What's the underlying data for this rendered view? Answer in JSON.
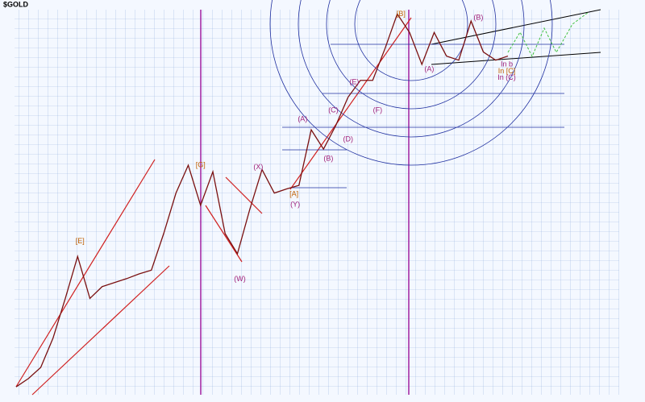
{
  "chart_data": {
    "type": "line",
    "title": "$GOLD",
    "values": [
      261,
      273,
      290,
      340,
      422,
      530,
      422,
      450,
      460,
      470,
      482,
      492,
      600,
      748,
      870,
      700,
      840,
      600,
      538,
      684,
      850,
      748,
      765,
      780,
      1055,
      950,
      1080,
      1260,
      1380,
      1380,
      1640,
      1980,
      1790,
      1505,
      1790,
      1575,
      1540,
      1905,
      1610,
      1540,
      1575
    ],
    "color": "#7a1010",
    "log_scale": true,
    "ylim": [
      250,
      2000
    ],
    "grid": true,
    "annotations": [
      {
        "text": "[E]",
        "x": 5.2,
        "y": 575,
        "color": "#c06000"
      },
      {
        "text": "[G]",
        "x": 15,
        "y": 870,
        "color": "#c06000"
      },
      {
        "text": "[B]",
        "x": 31.3,
        "y": 1975,
        "color": "#c06000"
      },
      {
        "text": "(A)",
        "x": 23.3,
        "y": 1117,
        "color": "#a0207a"
      },
      {
        "text": "(C)",
        "x": 25.8,
        "y": 1172,
        "color": "#a0207a"
      },
      {
        "text": "(E)",
        "x": 27.5,
        "y": 1367,
        "color": "#a0207a"
      },
      {
        "text": "(D)",
        "x": 27,
        "y": 1002,
        "color": "#a0207a"
      },
      {
        "text": "(F)",
        "x": 29.4,
        "y": 1172,
        "color": "#a0207a"
      },
      {
        "text": "(B)",
        "x": 25.4,
        "y": 902,
        "color": "#a0207a"
      },
      {
        "text": "[A]",
        "x": 22.6,
        "y": 743,
        "color": "#c06000"
      },
      {
        "text": "(Y)",
        "x": 22.7,
        "y": 702,
        "color": "#a0207a"
      },
      {
        "text": "(X)",
        "x": 19.7,
        "y": 860,
        "color": "#a0207a"
      },
      {
        "text": "(W)",
        "x": 18.2,
        "y": 468,
        "color": "#a0207a"
      },
      {
        "text": "(A)",
        "x": 33.6,
        "y": 1466,
        "color": "#a0207a"
      },
      {
        "text": "(B)",
        "x": 37.6,
        "y": 1940,
        "color": "#a0207a"
      },
      {
        "text": "In b",
        "x": 39.9,
        "y": 1505,
        "color": "#a0207a"
      },
      {
        "text": "In [C]",
        "x": 39.9,
        "y": 1450,
        "color": "#c06000"
      },
      {
        "text": "In (C)",
        "x": 39.9,
        "y": 1400,
        "color": "#a0207a"
      }
    ]
  }
}
